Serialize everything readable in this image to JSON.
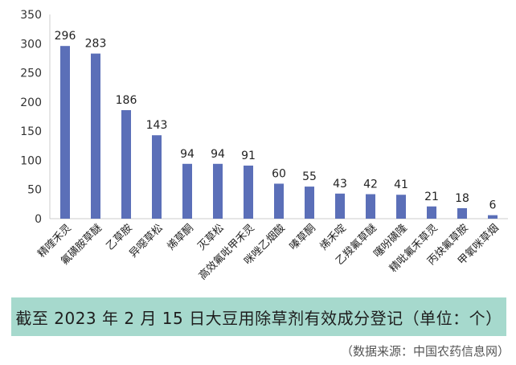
{
  "chart_data": {
    "type": "bar",
    "categories": [
      "精喹禾灵",
      "氟磺胺草醚",
      "乙草胺",
      "异噁草松",
      "烯草酮",
      "灭草松",
      "高效氟吡甲禾灵",
      "咪唑乙烟酸",
      "嗪草酮",
      "烯禾啶",
      "乙羧氟草醚",
      "噻吩磺隆",
      "精吡氟禾草灵",
      "丙炔氟草胺",
      "甲氧咪草烟"
    ],
    "values": [
      296,
      283,
      186,
      143,
      94,
      94,
      91,
      60,
      55,
      43,
      42,
      41,
      21,
      18,
      6
    ],
    "ylim": [
      0,
      350
    ],
    "yticks": [
      0,
      50,
      100,
      150,
      200,
      250,
      300,
      350
    ],
    "grid": false,
    "bar_color": "#5b6fb8"
  },
  "caption": "截至 2023 年 2 月 15 日大豆用除草剂有效成分登记（单位：个）",
  "source": "（数据来源：中国农药信息网）"
}
